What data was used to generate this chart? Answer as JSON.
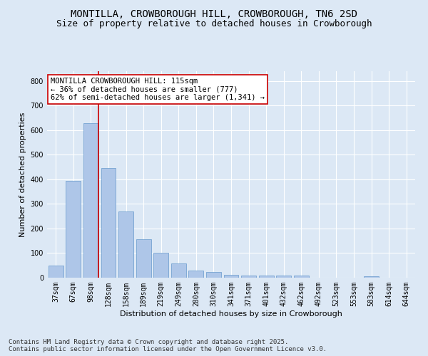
{
  "title": "MONTILLA, CROWBOROUGH HILL, CROWBOROUGH, TN6 2SD",
  "subtitle": "Size of property relative to detached houses in Crowborough",
  "xlabel": "Distribution of detached houses by size in Crowborough",
  "ylabel": "Number of detached properties",
  "categories": [
    "37sqm",
    "67sqm",
    "98sqm",
    "128sqm",
    "158sqm",
    "189sqm",
    "219sqm",
    "249sqm",
    "280sqm",
    "310sqm",
    "341sqm",
    "371sqm",
    "401sqm",
    "432sqm",
    "462sqm",
    "492sqm",
    "523sqm",
    "553sqm",
    "583sqm",
    "614sqm",
    "644sqm"
  ],
  "values": [
    50,
    393,
    630,
    447,
    270,
    155,
    100,
    58,
    30,
    22,
    12,
    10,
    10,
    10,
    10,
    0,
    0,
    0,
    5,
    0,
    0
  ],
  "bar_color": "#aec6e8",
  "bar_edge_color": "#6699cc",
  "reference_line_color": "#cc0000",
  "annotation_text": "MONTILLA CROWBOROUGH HILL: 115sqm\n← 36% of detached houses are smaller (777)\n62% of semi-detached houses are larger (1,341) →",
  "annotation_box_color": "#ffffff",
  "annotation_box_edge": "#cc0000",
  "ylim": [
    0,
    840
  ],
  "yticks": [
    0,
    100,
    200,
    300,
    400,
    500,
    600,
    700,
    800
  ],
  "background_color": "#dce8f5",
  "grid_color": "#ffffff",
  "footer": "Contains HM Land Registry data © Crown copyright and database right 2025.\nContains public sector information licensed under the Open Government Licence v3.0.",
  "title_fontsize": 10,
  "subtitle_fontsize": 9,
  "axis_fontsize": 8,
  "tick_fontsize": 7,
  "footer_fontsize": 6.5,
  "annot_fontsize": 7.5
}
